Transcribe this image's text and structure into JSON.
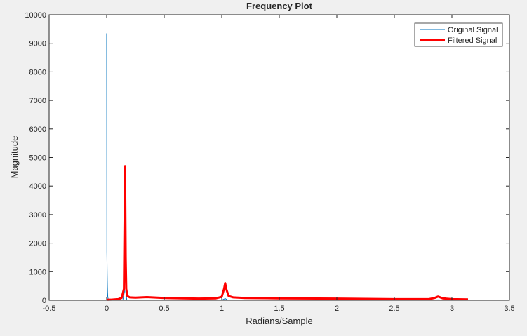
{
  "chart_data": {
    "type": "line",
    "title": "Frequency Plot",
    "xlabel": "Radians/Sample",
    "ylabel": "Magnitude",
    "xlim": [
      -0.5,
      3.5
    ],
    "ylim": [
      0,
      10000
    ],
    "xticks": [
      -0.5,
      0,
      0.5,
      1,
      1.5,
      2,
      2.5,
      3,
      3.5
    ],
    "xtick_labels": [
      "-0.5",
      "0",
      "0.5",
      "1",
      "1.5",
      "2",
      "2.5",
      "3",
      "3.5"
    ],
    "yticks": [
      0,
      1000,
      2000,
      3000,
      4000,
      5000,
      6000,
      7000,
      8000,
      9000,
      10000
    ],
    "ytick_labels": [
      "0",
      "1000",
      "2000",
      "3000",
      "4000",
      "5000",
      "6000",
      "7000",
      "8000",
      "9000",
      "10000"
    ],
    "grid": false,
    "legend_position": "top-right",
    "series": [
      {
        "name": "Original Signal",
        "color": "#0072bd",
        "line_width": "thin",
        "x": [
          0,
          0.002,
          0.004,
          0.006,
          0.008,
          0.01,
          0.012,
          0.014,
          0.016,
          0.05,
          0.1,
          0.14,
          0.155,
          0.16,
          0.165,
          0.175,
          0.2,
          0.5,
          1.0,
          1.03,
          1.05,
          1.1,
          2.0,
          2.8,
          2.88,
          2.95,
          3.14
        ],
        "y": [
          9350,
          1700,
          950,
          500,
          250,
          120,
          60,
          30,
          10,
          5,
          5,
          10,
          300,
          2300,
          300,
          10,
          5,
          5,
          5,
          60,
          10,
          5,
          5,
          5,
          15,
          5,
          0
        ]
      },
      {
        "name": "Filtered Signal",
        "color": "#ff0000",
        "line_width": "thick",
        "x": [
          0,
          0.05,
          0.1,
          0.13,
          0.15,
          0.16,
          0.165,
          0.17,
          0.18,
          0.2,
          0.25,
          0.3,
          0.35,
          0.5,
          0.8,
          0.95,
          1.0,
          1.02,
          1.03,
          1.04,
          1.06,
          1.1,
          1.2,
          1.5,
          2.0,
          2.5,
          2.8,
          2.85,
          2.88,
          2.92,
          3.0,
          3.14
        ],
        "y": [
          20,
          25,
          40,
          80,
          400,
          4700,
          1500,
          400,
          150,
          100,
          90,
          100,
          110,
          80,
          60,
          70,
          120,
          400,
          600,
          380,
          150,
          100,
          80,
          70,
          60,
          40,
          40,
          80,
          130,
          70,
          40,
          30
        ]
      }
    ]
  }
}
